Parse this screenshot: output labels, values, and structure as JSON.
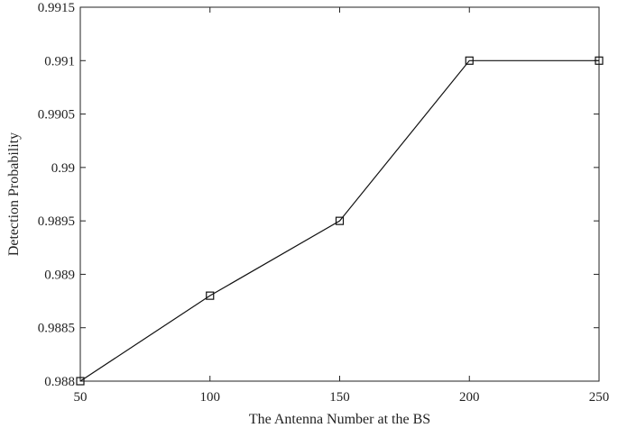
{
  "chart_data": {
    "type": "line",
    "title": "",
    "xlabel": "The Antenna Number at the BS",
    "ylabel": "Detection Probability",
    "x": [
      50,
      100,
      150,
      200,
      250
    ],
    "series": [
      {
        "values": [
          0.988,
          0.9888,
          0.9895,
          0.991,
          0.991
        ]
      }
    ],
    "xlim": [
      50,
      250
    ],
    "ylim": [
      0.988,
      0.9915
    ],
    "xticks": [
      "50",
      "100",
      "150",
      "200",
      "250"
    ],
    "yticks": [
      "0.988",
      "0.9885",
      "0.989",
      "0.9895",
      "0.99",
      "0.9905",
      "0.991",
      "0.9915"
    ],
    "marker": "square",
    "grid": false,
    "colors": {
      "line": "#111111",
      "axis": "#222222"
    }
  }
}
